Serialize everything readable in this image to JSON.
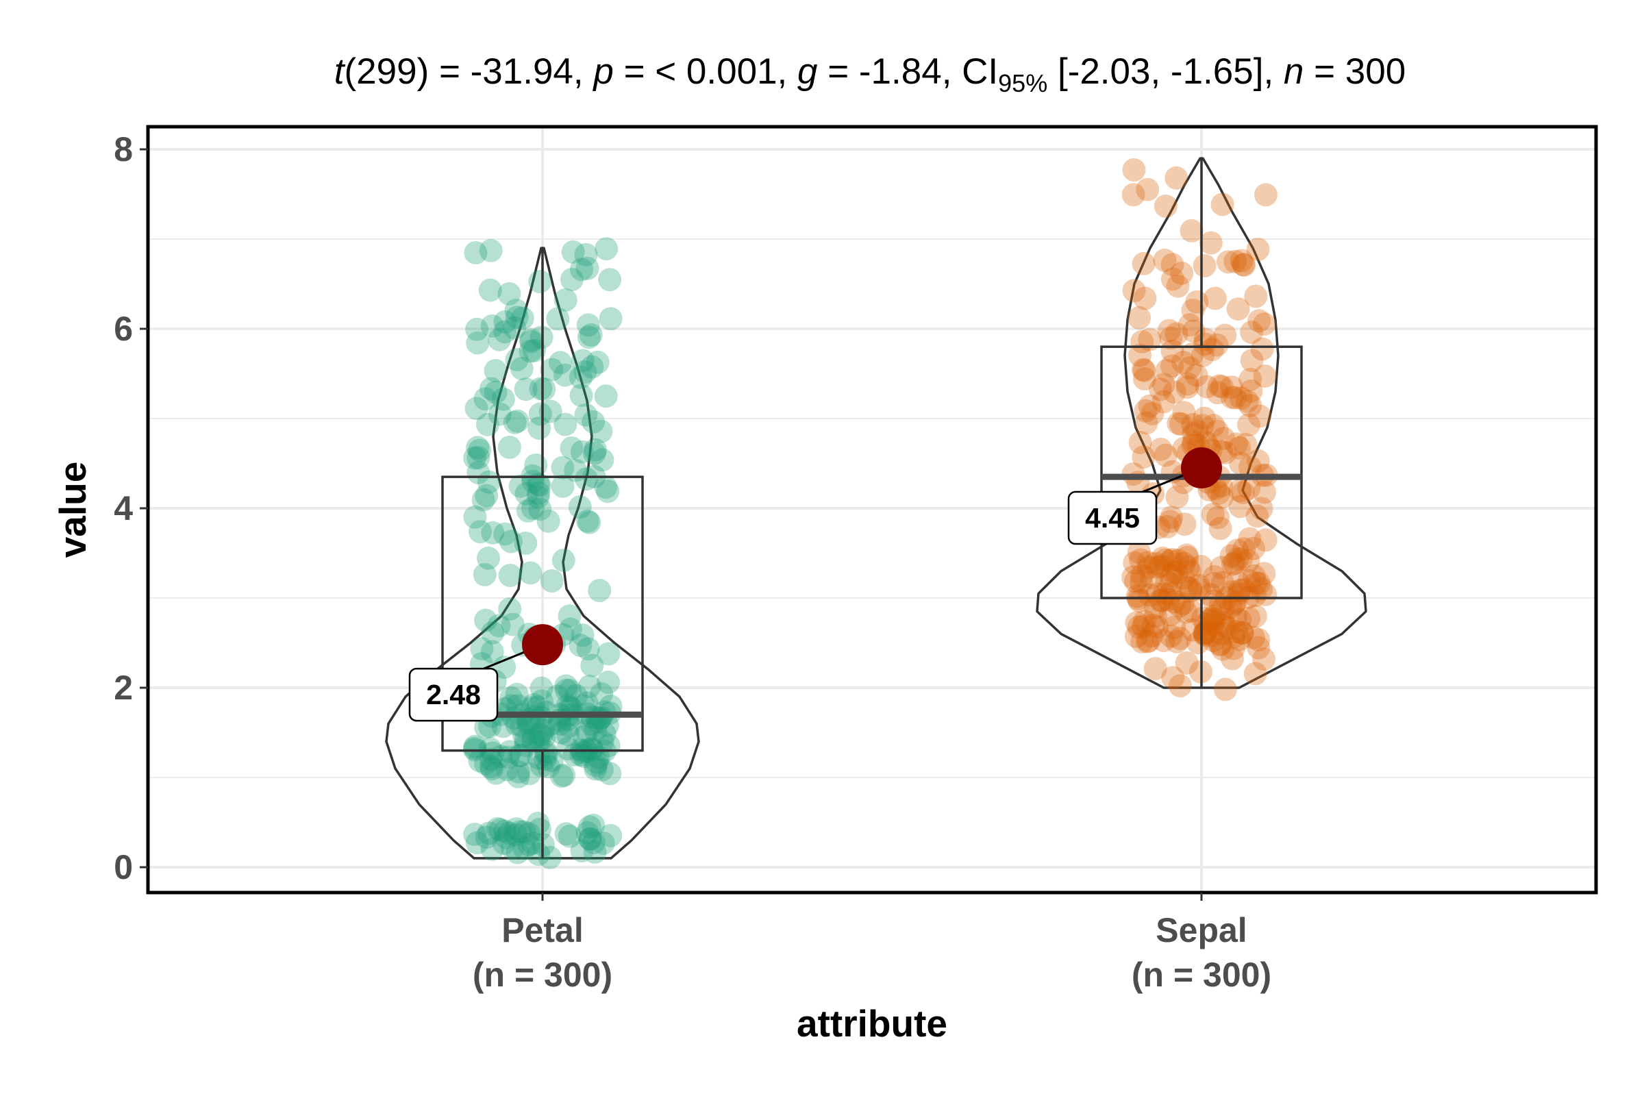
{
  "chart_data": {
    "type": "violin-box-scatter",
    "subtitle": {
      "t_sym": "t",
      "t_val": "(299) = -31.94, ",
      "p_sym": "p",
      "p_val": " = < 0.001, ",
      "g_sym": "g",
      "g_val": " = -1.84, ",
      "ci_sym": "CI",
      "ci_sub": "95%",
      "ci_val": " [-2.03, -1.65], ",
      "n_sym": "n",
      "n_val": " = 300"
    },
    "xlabel": "attribute",
    "ylabel": "value",
    "ylim": [
      -0.25,
      8.3
    ],
    "yticks": [
      "0",
      "2",
      "4",
      "6",
      "8"
    ],
    "grid": true,
    "categories": [
      {
        "name": "Petal",
        "n_label": "(n = 300)",
        "color": "#1b9e77",
        "mean": 2.48,
        "mean_label": "2.48",
        "box": {
          "q1": 1.3,
          "median": 1.7,
          "q3": 4.35,
          "min": 0.1,
          "max": 6.9
        },
        "violin_range": [
          0.1,
          6.9
        ]
      },
      {
        "name": "Sepal",
        "n_label": "(n = 300)",
        "color": "#d95f02",
        "mean": 4.45,
        "mean_label": "4.45",
        "box": {
          "q1": 3.0,
          "median": 4.35,
          "q3": 5.8,
          "min": 2.0,
          "max": 7.9
        },
        "violin_range": [
          2.0,
          7.9
        ]
      }
    ],
    "mean_color": "#8b0000"
  }
}
